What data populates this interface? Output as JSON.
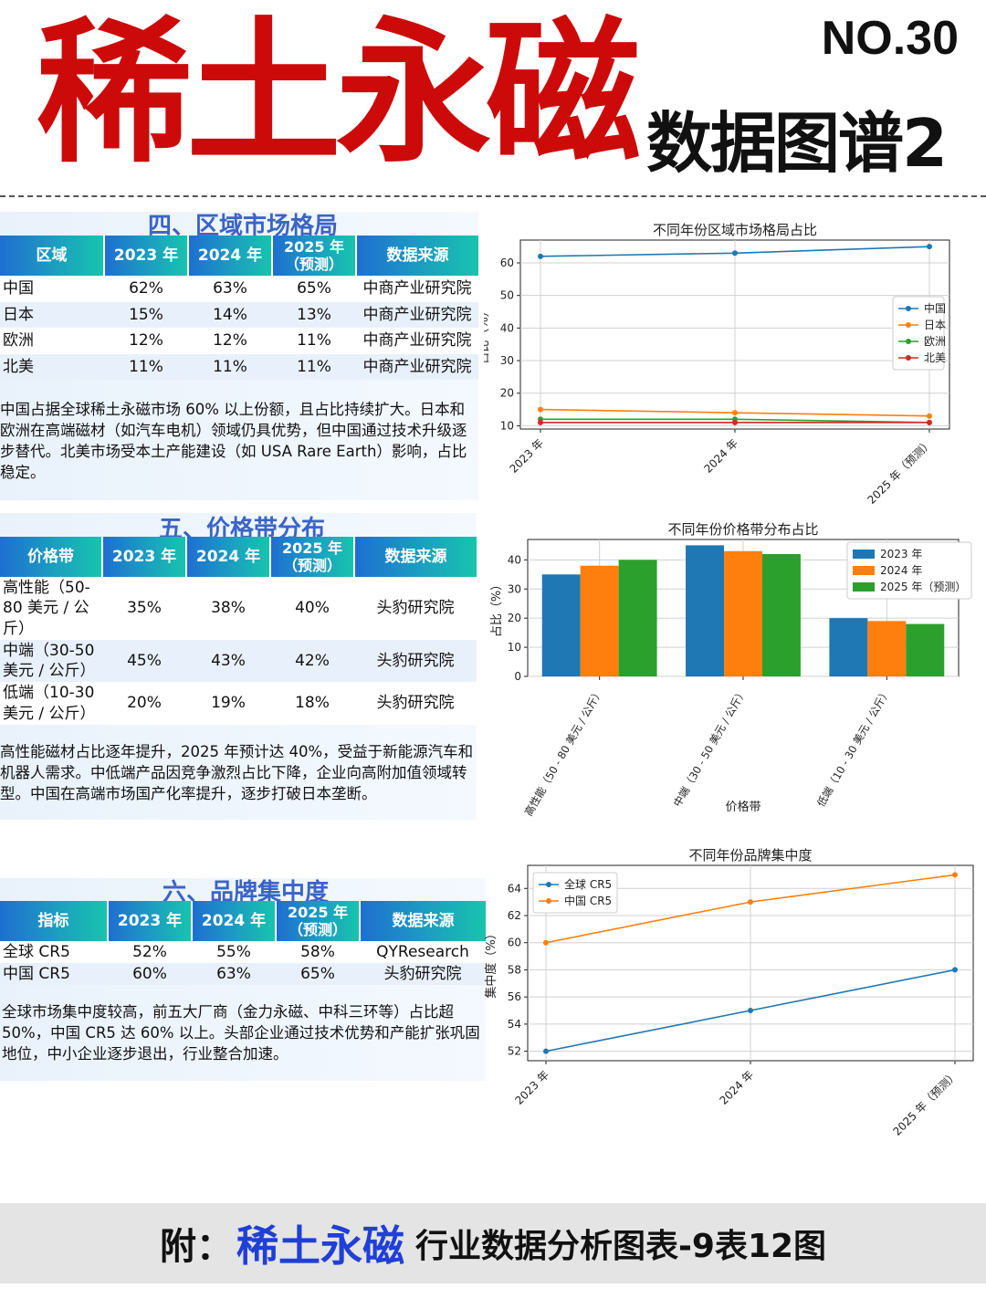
{
  "header": {
    "main_title": "稀土永磁",
    "issue_no": "NO.30",
    "subtitle": "数据图谱2"
  },
  "sections": [
    {
      "title": "四、区域市场格局",
      "headers": [
        "区域",
        "2023 年",
        "2024 年",
        "2025 年\n（预测）",
        "数据来源"
      ],
      "rows": [
        [
          "中国",
          "62%",
          "63%",
          "65%",
          "中商产业研究院"
        ],
        [
          "日本",
          "15%",
          "14%",
          "13%",
          "中商产业研究院"
        ],
        [
          "欧洲",
          "12%",
          "12%",
          "11%",
          "中商产业研究院"
        ],
        [
          "北美",
          "11%",
          "11%",
          "11%",
          "中商产业研究院"
        ]
      ],
      "description": "中国占据全球稀土永磁市场 60% 以上份额，且占比持续扩大。日本和欧洲在高端磁材（如汽车电机）领域仍具优势，但中国通过技术升级逐步替代。北美市场受本土产能建设（如 USA Rare Earth）影响，占比稳定。"
    },
    {
      "title": "五、价格带分布",
      "headers": [
        "价格带",
        "2023 年",
        "2024 年",
        "2025 年\n（预测）",
        "数据来源"
      ],
      "rows": [
        [
          "高性能（50-80 美元 / 公斤）",
          "35%",
          "38%",
          "40%",
          "头豹研究院"
        ],
        [
          "中端（30-50 美元 / 公斤）",
          "45%",
          "43%",
          "42%",
          "头豹研究院"
        ],
        [
          "低端（10-30 美元 / 公斤）",
          "20%",
          "19%",
          "18%",
          "头豹研究院"
        ]
      ],
      "description": "高性能磁材占比逐年提升，2025 年预计达 40%，受益于新能源汽车和机器人需求。中低端产品因竞争激烈占比下降，企业向高附加值领域转型。中国在高端市场国产化率提升，逐步打破日本垄断。"
    },
    {
      "title": "六、品牌集中度",
      "headers": [
        "指标",
        "2023 年",
        "2024 年",
        "2025 年\n（预测）",
        "数据来源"
      ],
      "rows": [
        [
          "全球 CR5",
          "52%",
          "55%",
          "58%",
          "QYResearch"
        ],
        [
          "中国 CR5",
          "60%",
          "63%",
          "65%",
          "头豹研究院"
        ]
      ],
      "description": "全球市场集中度较高，前五大厂商（金力永磁、中科三环等）占比超 50%，中国 CR5 达 60% 以上。头部企业通过技术优势和产能扩张巩固地位，中小企业逐步退出，行业整合加速。"
    }
  ],
  "chart_data": [
    {
      "type": "line",
      "title": "不同年份区域市场格局占比",
      "xlabel": "",
      "ylabel": "占比（%）",
      "x": [
        "2023 年",
        "2024 年",
        "2025 年（预测）"
      ],
      "series": [
        {
          "name": "中国",
          "values": [
            62,
            63,
            65
          ],
          "color": "#1f77b4"
        },
        {
          "name": "日本",
          "values": [
            15,
            14,
            13
          ],
          "color": "#ff7f0e"
        },
        {
          "name": "欧洲",
          "values": [
            12,
            12,
            11
          ],
          "color": "#2ca02c"
        },
        {
          "name": "北美",
          "values": [
            11,
            11,
            11
          ],
          "color": "#d62728"
        }
      ],
      "ylim": [
        9,
        67
      ],
      "yticks": [
        10,
        20,
        30,
        40,
        50,
        60
      ],
      "grid": true,
      "legend": "center-right"
    },
    {
      "type": "bar",
      "title": "不同年份价格带分布占比",
      "xlabel": "价格带",
      "ylabel": "占比（%）",
      "categories": [
        "高性能（50 - 80 美元 / 公斤）",
        "中端（30 - 50 美元 / 公斤）",
        "低端（10 - 30 美元 / 公斤）"
      ],
      "series": [
        {
          "name": "2023 年",
          "values": [
            35,
            45,
            20
          ],
          "color": "#1f77b4"
        },
        {
          "name": "2024 年",
          "values": [
            38,
            43,
            19
          ],
          "color": "#ff7f0e"
        },
        {
          "name": "2025 年（预测）",
          "values": [
            40,
            42,
            18
          ],
          "color": "#2ca02c"
        }
      ],
      "ylim": [
        0,
        47
      ],
      "yticks": [
        0,
        10,
        20,
        30,
        40
      ],
      "grid": true,
      "legend": "top-right"
    },
    {
      "type": "line",
      "title": "不同年份品牌集中度",
      "xlabel": "",
      "ylabel": "集中度（%）",
      "x": [
        "2023 年",
        "2024 年",
        "2025 年（预测）"
      ],
      "series": [
        {
          "name": "全球 CR5",
          "values": [
            52,
            55,
            58
          ],
          "color": "#1f77b4"
        },
        {
          "name": "中国 CR5",
          "values": [
            60,
            63,
            65
          ],
          "color": "#ff7f0e"
        }
      ],
      "ylim": [
        51.3,
        65.7
      ],
      "yticks": [
        52,
        54,
        56,
        58,
        60,
        62,
        64
      ],
      "grid": true,
      "legend": "top-left"
    }
  ],
  "footer": {
    "prefix": "附：",
    "brand": "稀土永磁",
    "rest": "行业数据分析图表-9表12图"
  }
}
